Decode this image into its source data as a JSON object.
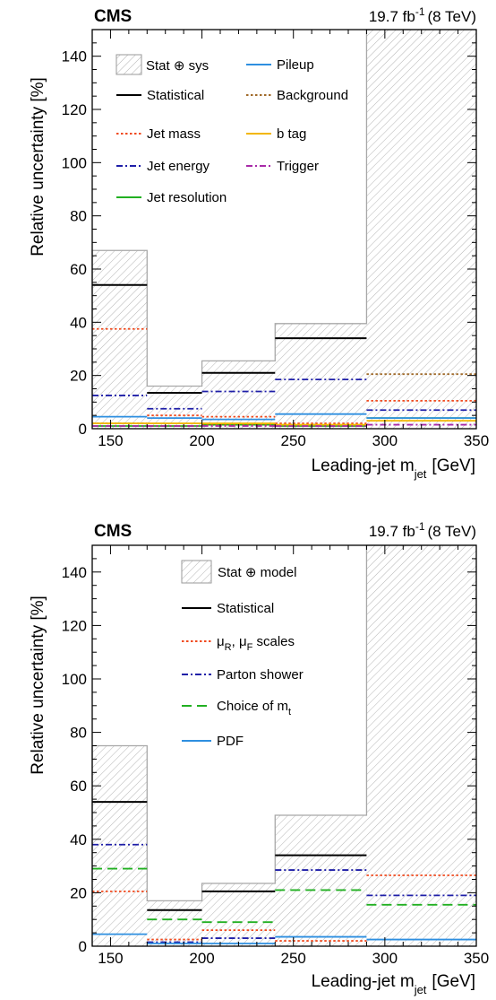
{
  "chart_data": [
    {
      "type": "bar",
      "experiment": "CMS",
      "luminosity": "19.7 fb",
      "lumi_exp": "-1",
      "energy": "(8 TeV)",
      "ylabel": "Relative uncertainty [%]",
      "xlabel_main": "Leading-jet m",
      "xlabel_sub": "jet",
      "xlabel_unit": "[GeV]",
      "xlim": [
        140,
        350
      ],
      "ylim": [
        0,
        150
      ],
      "xticks": [
        150,
        200,
        250,
        300,
        350
      ],
      "yticks": [
        0,
        20,
        40,
        60,
        80,
        100,
        120,
        140
      ],
      "bin_edges": [
        140,
        170,
        200,
        240,
        290,
        350
      ],
      "legend_layout": "two-column",
      "total": {
        "name": "Stat ⊕ sys",
        "values": [
          67,
          16,
          25.5,
          39.5,
          150
        ]
      },
      "series": [
        {
          "name": "Statistical",
          "color": "#000000",
          "dash": "solid",
          "values": [
            54,
            13.5,
            21,
            34,
            0
          ]
        },
        {
          "name": "Jet mass",
          "color": "#f04a1e",
          "dash": "dot",
          "values": [
            37.5,
            5,
            4.5,
            2,
            10.5
          ]
        },
        {
          "name": "Jet energy",
          "color": "#1f1fa8",
          "dash": "dashdot",
          "values": [
            12.5,
            7.5,
            14,
            18.5,
            7
          ]
        },
        {
          "name": "Jet resolution",
          "color": "#22b022",
          "dash": "solid",
          "values": [
            1,
            1,
            1.5,
            1,
            4
          ]
        },
        {
          "name": "Pileup",
          "color": "#2e8fe0",
          "dash": "solid",
          "values": [
            4.5,
            4,
            3.5,
            5.5,
            4
          ]
        },
        {
          "name": "Background",
          "color": "#a06a2a",
          "dash": "dot",
          "values": [
            2,
            1,
            1.5,
            1,
            20.5
          ]
        },
        {
          "name": "b tag",
          "color": "#f2b600",
          "dash": "solid",
          "values": [
            2,
            2,
            2,
            1.5,
            3
          ]
        },
        {
          "name": "Trigger",
          "color": "#a82aa8",
          "dash": "dashdot",
          "values": [
            1,
            1,
            1,
            1,
            1.5
          ]
        }
      ]
    },
    {
      "type": "bar",
      "experiment": "CMS",
      "luminosity": "19.7 fb",
      "lumi_exp": "-1",
      "energy": "(8 TeV)",
      "ylabel": "Relative uncertainty [%]",
      "xlabel_main": "Leading-jet m",
      "xlabel_sub": "jet",
      "xlabel_unit": "[GeV]",
      "xlim": [
        140,
        350
      ],
      "ylim": [
        0,
        150
      ],
      "xticks": [
        150,
        200,
        250,
        300,
        350
      ],
      "yticks": [
        0,
        20,
        40,
        60,
        80,
        100,
        120,
        140
      ],
      "bin_edges": [
        140,
        170,
        200,
        240,
        290,
        350
      ],
      "legend_layout": "one-column",
      "total": {
        "name": "Stat ⊕ model",
        "values": [
          75,
          17,
          23.5,
          49,
          150
        ]
      },
      "series": [
        {
          "name": "Statistical",
          "color": "#000000",
          "dash": "solid",
          "values": [
            54,
            13.5,
            20.5,
            34,
            0
          ]
        },
        {
          "name": "μR, μF scales",
          "label_parts": [
            "μ",
            "R",
            ", μ",
            "F",
            " scales"
          ],
          "color": "#f04a1e",
          "dash": "dot",
          "values": [
            20.5,
            2.5,
            6,
            2,
            26.5
          ]
        },
        {
          "name": "Parton shower",
          "color": "#1f1fa8",
          "dash": "dashdot",
          "values": [
            38,
            1.5,
            3,
            28.5,
            19
          ]
        },
        {
          "name": "Choice of mt",
          "label_parts": [
            "Choice of m",
            "t"
          ],
          "color": "#22b022",
          "dash": "dash",
          "values": [
            29,
            10,
            9,
            21,
            15.5
          ]
        },
        {
          "name": "PDF",
          "color": "#2e8fe0",
          "dash": "solid",
          "values": [
            4.5,
            1,
            1,
            3.5,
            2.5
          ]
        }
      ]
    }
  ]
}
